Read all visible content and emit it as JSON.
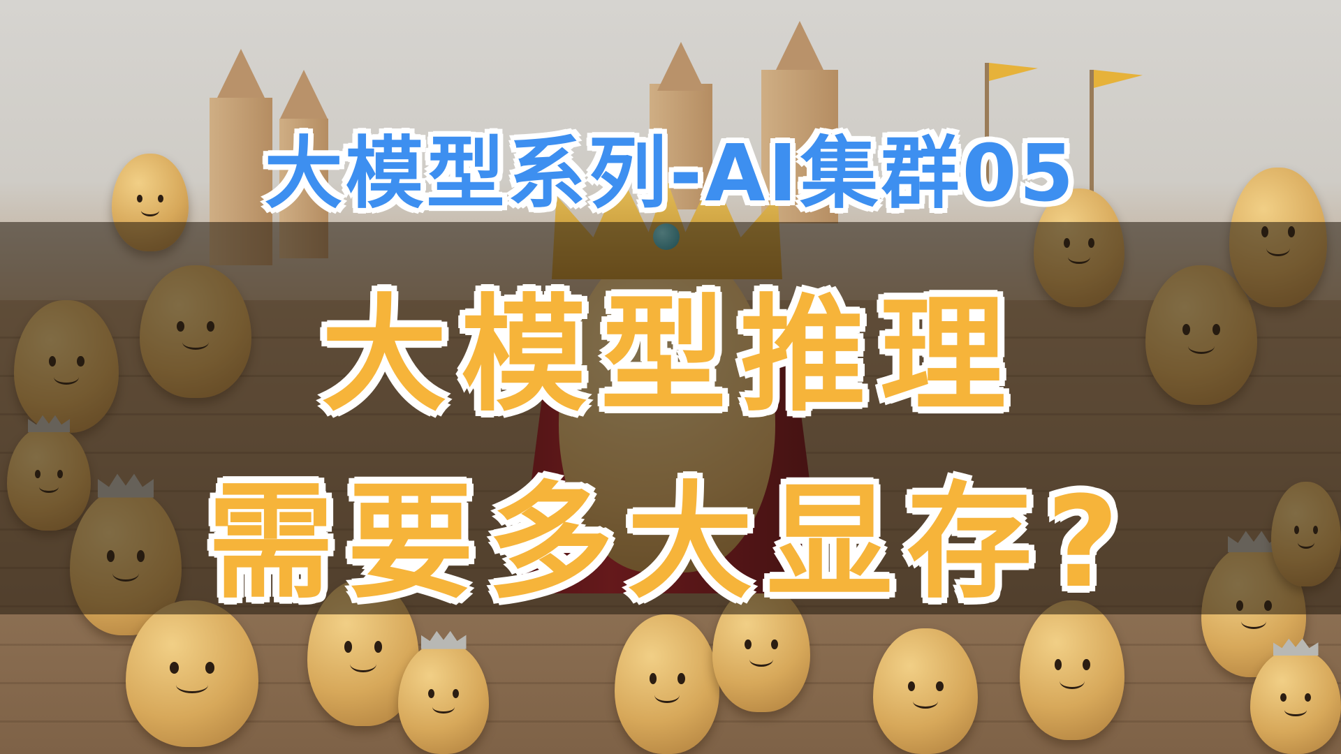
{
  "thumbnail": {
    "subtitle": "大模型系列-AI集群05",
    "title_line_1": "大模型推理",
    "title_line_2": "需要多大显存?"
  },
  "colors": {
    "subtitle_fill": "#3d8ff0",
    "title_fill": "#f6b43a",
    "outline": "#ffffff",
    "band": "#231a0f"
  },
  "scene": {
    "description_icons": [
      "king-potato-with-crown",
      "potatoes-with-faces",
      "wooden-castle-towers",
      "yellow-flags"
    ]
  }
}
